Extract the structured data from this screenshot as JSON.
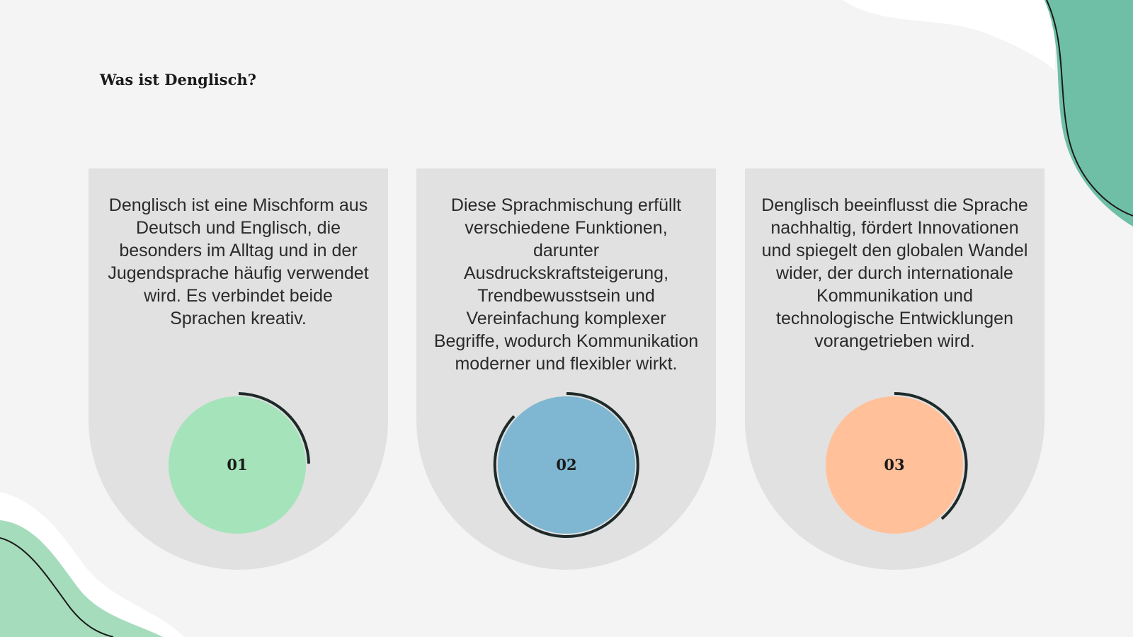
{
  "header": {
    "title": "Was ist Denglisch?"
  },
  "cards": [
    {
      "text": "Denglisch ist eine Mischform aus Deutsch und Englisch, die besonders im Alltag und in der Jugendsprache häufig verwendet wird. Es verbindet beide Sprachen kreativ.",
      "number": "01"
    },
    {
      "text": "Diese Sprachmischung erfüllt verschiedene Funktionen, darunter Ausdruckskraftsteigerung, Trendbewusstsein und Vereinfachung komplexer Begriffe, wodurch Kommunikation moderner und flexibler wirkt.",
      "number": "02"
    },
    {
      "text": "Denglisch beeinflusst die Sprache nachhaltig, fördert Innovationen und spiegelt den globalen Wandel wider, der durch internationale Kommunikation und technologische Entwicklungen vorangetrieben wird.",
      "number": "03"
    }
  ]
}
